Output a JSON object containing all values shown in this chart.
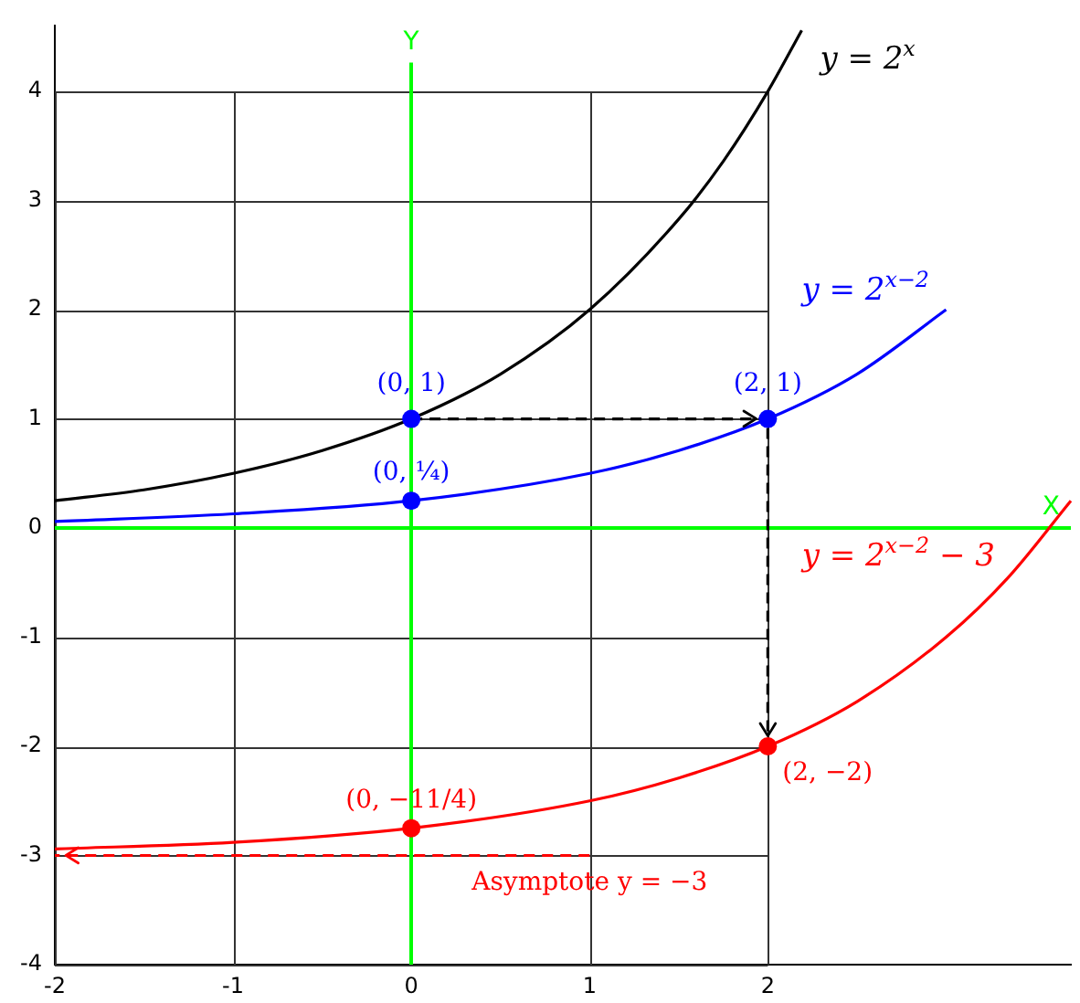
{
  "chart_data": {
    "type": "line",
    "xlabel": "X",
    "ylabel": "Y",
    "xlim": [
      -2,
      3.7
    ],
    "ylim": [
      -4,
      4.6
    ],
    "xticks": [
      -2,
      -1,
      0,
      1,
      2
    ],
    "yticks": [
      -4,
      -3,
      -2,
      -1,
      0,
      1,
      2,
      3,
      4
    ],
    "grid": true,
    "series": [
      {
        "name": "y = 2$^{x}$",
        "color": "#000000",
        "x": [
          -2,
          -1.5,
          -1,
          -0.5,
          0,
          0.5,
          1,
          1.5,
          1.75,
          2,
          2.19
        ],
        "values": [
          0.25,
          0.35,
          0.5,
          0.71,
          1,
          1.41,
          2,
          2.83,
          3.36,
          4,
          4.56
        ]
      },
      {
        "name": "y = 2$^{x−2}$",
        "color": "#0000ff",
        "x": [
          -2,
          -1,
          0,
          1,
          1.5,
          2,
          2.5,
          3
        ],
        "values": [
          0.06,
          0.13,
          0.25,
          0.5,
          0.71,
          1,
          1.41,
          2
        ]
      },
      {
        "name": "y = 2$^{x−2}$ − 3",
        "color": "#ff0000",
        "x": [
          -2,
          -1,
          0,
          1,
          1.5,
          2,
          2.5,
          3,
          3.35,
          3.7
        ],
        "values": [
          -2.94,
          -2.88,
          -2.75,
          -2.5,
          -2.29,
          -2,
          -1.59,
          -1,
          -0.45,
          0.25
        ]
      },
      {
        "color": "#000000",
        "line_style": "dashed",
        "x": [
          0,
          2,
          2
        ],
        "values": [
          1,
          1,
          -2
        ]
      },
      {
        "color": "#ff0000",
        "line_style": "dashed",
        "x": [
          1,
          -2
        ],
        "values": [
          -3,
          -3
        ]
      },
      {
        "type": "scatter",
        "color": "#0000ff",
        "marker": "circle",
        "x": [
          0,
          2,
          0
        ],
        "values": [
          1,
          1,
          0.25
        ]
      },
      {
        "type": "scatter",
        "color": "#ff0000",
        "marker": "circle",
        "x": [
          0,
          2
        ],
        "values": [
          -2.75,
          -2
        ]
      }
    ],
    "annotations": [
      {
        "text": "(0, 1)",
        "x": 0,
        "y": 1
      },
      {
        "text": "(2, 1)",
        "x": 2,
        "y": 1
      },
      {
        "text": "(0, ¼)",
        "x": 0,
        "y": 0.25
      },
      {
        "text": "(0, −11/4)",
        "x": 0,
        "y": -2.75
      },
      {
        "text": "(2, −2)",
        "x": 2,
        "y": -2
      },
      {
        "text": "Asymptote y = −3",
        "x": 1,
        "y": -3
      }
    ]
  }
}
